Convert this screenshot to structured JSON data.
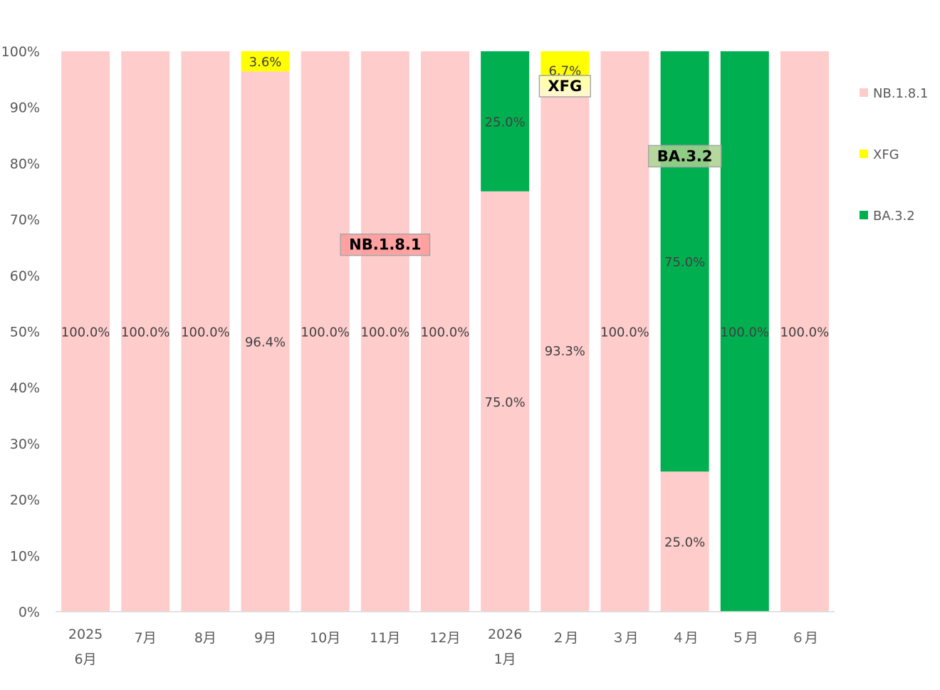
{
  "chart_data": {
    "type": "bar",
    "stacked": true,
    "y_format": "percent",
    "ylim": [
      0,
      100
    ],
    "yticks": [
      "0%",
      "10%",
      "20%",
      "30%",
      "40%",
      "50%",
      "60%",
      "70%",
      "80%",
      "90%",
      "100%"
    ],
    "categories": [
      [
        "2025",
        "6月"
      ],
      [
        "7月"
      ],
      [
        "8月"
      ],
      [
        "9月"
      ],
      [
        "10月"
      ],
      [
        "11月"
      ],
      [
        "12月"
      ],
      [
        "2026",
        "1月"
      ],
      [
        "２月"
      ],
      [
        "３月"
      ],
      [
        "４月"
      ],
      [
        "５月"
      ],
      [
        "６月"
      ]
    ],
    "series": [
      {
        "name": "NB.1.8.1",
        "color": "#ffcccc",
        "values": [
          100,
          100,
          100,
          96.4,
          100,
          100,
          100,
          75,
          93.3,
          100,
          25,
          0,
          100
        ],
        "labels": [
          "100.0%",
          "100.0%",
          "100.0%",
          "96.4%",
          "100.0%",
          "100.0%",
          "100.0%",
          "75.0%",
          "93.3%",
          "100.0%",
          "25.0%",
          "",
          "100.0%"
        ]
      },
      {
        "name": "XFG",
        "color": "#ffff00",
        "values": [
          0,
          0,
          0,
          3.6,
          0,
          0,
          0,
          0,
          6.7,
          0,
          0,
          0,
          0
        ],
        "labels": [
          "",
          "",
          "",
          "3.6%",
          "",
          "",
          "",
          "",
          "6.7%",
          "",
          "",
          "",
          ""
        ]
      },
      {
        "name": "BA.3.2",
        "color": "#00b050",
        "values": [
          0,
          0,
          0,
          0,
          0,
          0,
          0,
          25,
          0,
          0,
          75,
          100,
          0
        ],
        "labels": [
          "",
          "",
          "",
          "",
          "",
          "",
          "",
          "25.0%",
          "",
          "",
          "75.0%",
          "100.0%",
          ""
        ]
      }
    ],
    "legend": {
      "position": "right",
      "entries": [
        "NB.1.8.1",
        "XFG",
        "BA.3.2"
      ]
    },
    "annotations": [
      {
        "text": "NB.1.8.1",
        "fill": "#ff9999",
        "category_index": 5,
        "y": 65.6
      },
      {
        "text": "XFG",
        "fill": "#ffffcc",
        "category_index": 8,
        "y": 93.9
      },
      {
        "text": "BA.3.2",
        "fill": "#a9d18e",
        "category_index": 10,
        "y": 81.4
      }
    ],
    "grid": false
  }
}
